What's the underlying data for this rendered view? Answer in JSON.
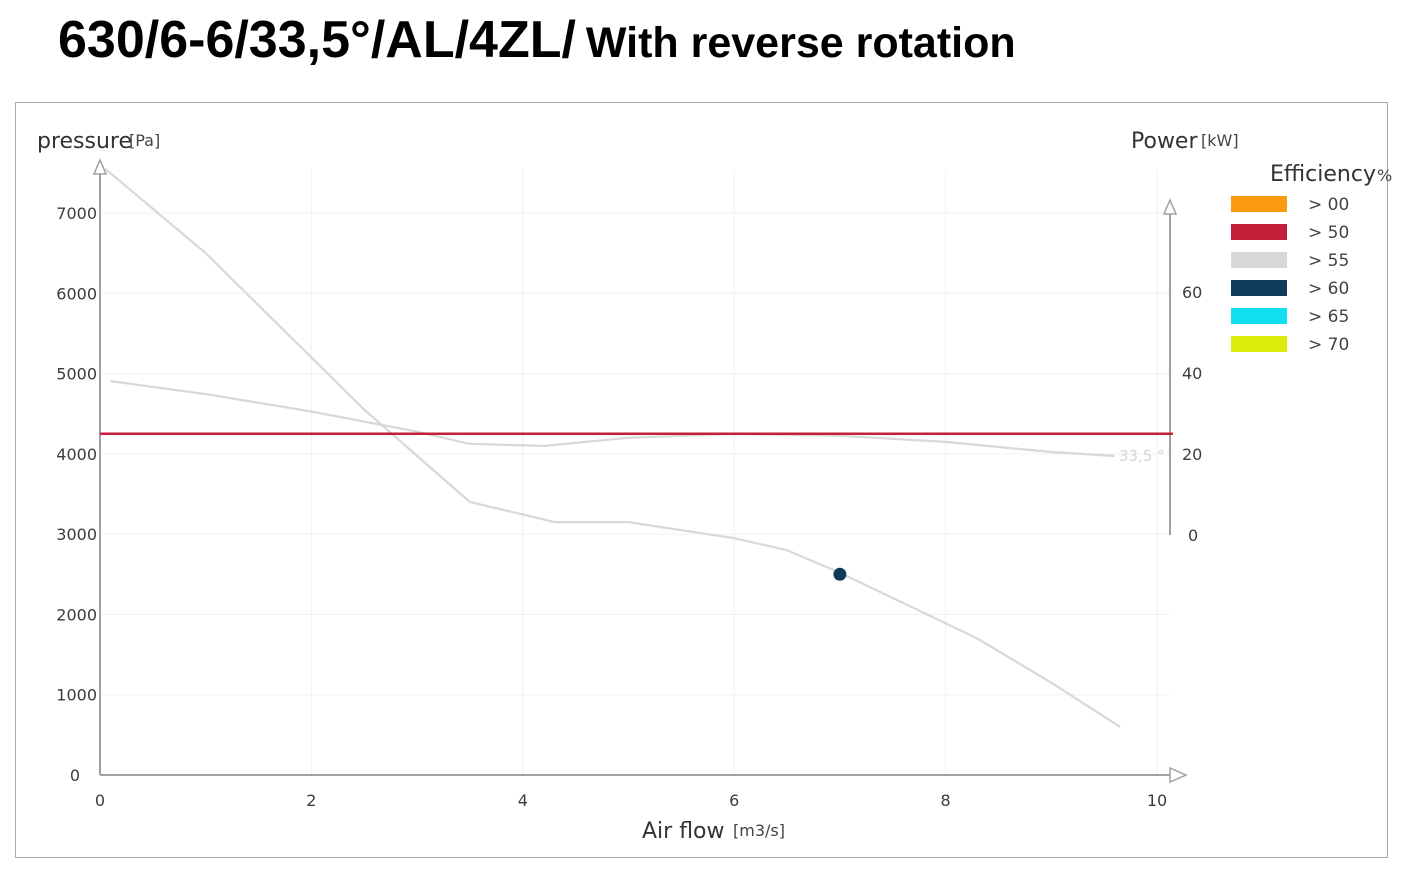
{
  "header": {
    "title": "630/6-6/33,5°/AL/4ZL/",
    "subtitle": "With reverse rotation"
  },
  "chart_data": {
    "type": "line",
    "x_axis": {
      "label": "Air flow",
      "unit": "[m3/s]",
      "range": [
        0,
        10
      ],
      "ticks": [
        "0",
        "2",
        "4",
        "6",
        "8",
        "10"
      ]
    },
    "y_axis_left": {
      "label": "pressure",
      "unit": "[Pa]",
      "range": [
        0,
        7500
      ],
      "ticks": [
        "0",
        "1000",
        "2000",
        "3000",
        "4000",
        "5000",
        "6000",
        "7000"
      ]
    },
    "y_axis_right": {
      "label": "Power",
      "unit": "[kW]",
      "range": [
        0,
        80
      ],
      "ticks": [
        "0",
        "20",
        "40",
        "60"
      ]
    },
    "grid": true,
    "series": [
      {
        "name": "33,5 °",
        "axis": "left",
        "color": "#d8d8d8",
        "x": [
          0.05,
          1.0,
          2.5,
          3.5,
          4.3,
          5.0,
          6.0,
          6.5,
          7.0,
          8.3,
          9.0,
          9.65
        ],
        "y": [
          7550,
          6500,
          4550,
          3400,
          3150,
          3150,
          2950,
          2800,
          2520,
          1700,
          1150,
          600
        ]
      },
      {
        "name": "",
        "axis": "right",
        "color": "#d8d8d8",
        "x": [
          0.1,
          1.0,
          2.0,
          3.0,
          3.5,
          4.2,
          5.0,
          6.0,
          7.0,
          8.0,
          9.0,
          9.6
        ],
        "y": [
          38,
          34.8,
          30.5,
          25.5,
          22.5,
          22,
          24,
          25,
          24.5,
          23,
          20.5,
          19.5
        ]
      },
      {
        "name": "",
        "axis": "right",
        "color": "#c41e3a",
        "x": [
          0,
          10.15
        ],
        "y": [
          25,
          25
        ]
      }
    ],
    "operating_point": {
      "x": 7.0,
      "y": 2500,
      "color": "#0f3b5a"
    },
    "legend": {
      "title": "Efficiency",
      "unit": "%",
      "placement": "right",
      "items": [
        {
          "label": "> 00",
          "color": "#fb9b0f"
        },
        {
          "label": "> 50",
          "color": "#c41e3a"
        },
        {
          "label": "> 55",
          "color": "#d8d8d8"
        },
        {
          "label": "> 60",
          "color": "#0f3b5a"
        },
        {
          "label": "> 65",
          "color": "#11dff0"
        },
        {
          "label": "> 70",
          "color": "#dcec0c"
        }
      ]
    }
  }
}
